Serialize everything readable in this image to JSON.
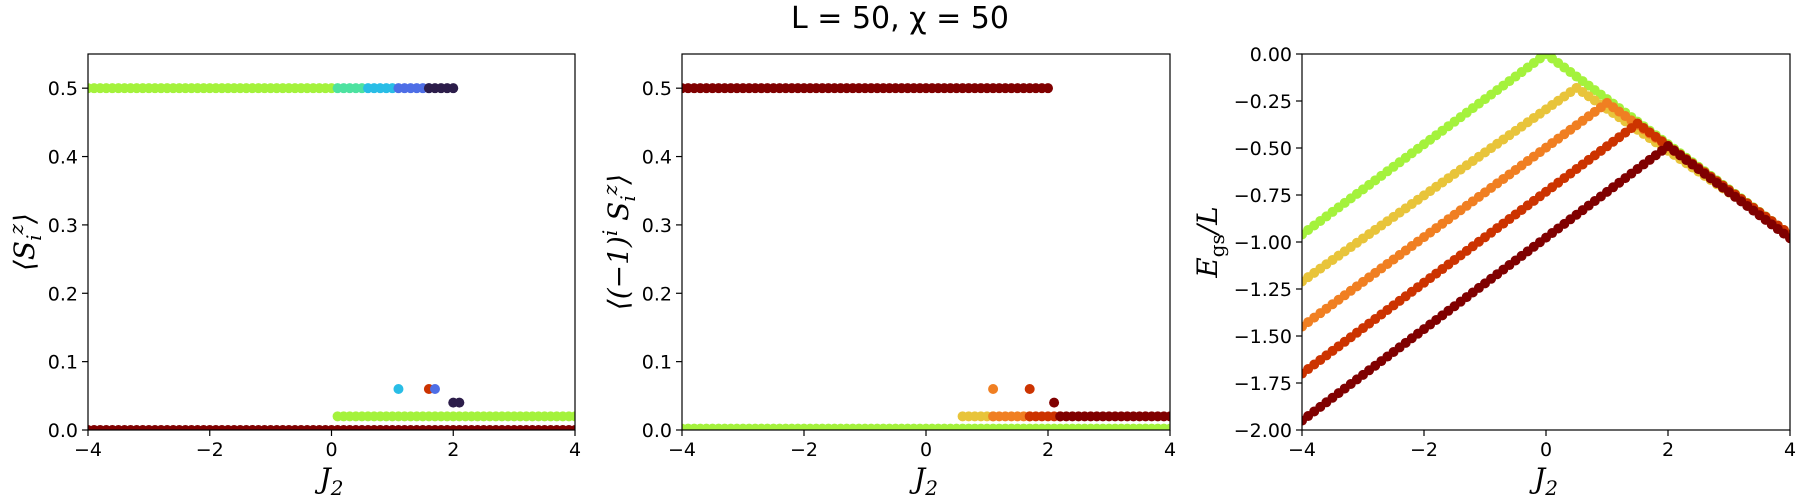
{
  "title": "L = 50, χ = 50",
  "chart_data": [
    {
      "type": "scatter",
      "ylabel": "⟨S_i^z⟩",
      "xlabel": "J_2",
      "xlim": [
        -4,
        4
      ],
      "ylim": [
        0,
        0.55
      ],
      "xticks": [
        "−4",
        "−2",
        "0",
        "2",
        "4"
      ],
      "yticks": [
        "0.0",
        "0.1",
        "0.2",
        "0.3",
        "0.4",
        "0.5"
      ],
      "xtick_values": [
        -4,
        -2,
        0,
        2,
        4
      ],
      "ytick_values": [
        0,
        0.1,
        0.2,
        0.3,
        0.4,
        0.5
      ],
      "series": [
        {
          "color": "#800000",
          "x_range": [
            -4,
            4
          ],
          "step": 0.1,
          "y": 0.0
        },
        {
          "color": "#a4f23c",
          "x_range": [
            -4,
            0
          ],
          "step": 0.1,
          "y": 0.5
        },
        {
          "color": "#4de2a0",
          "x_range": [
            0.1,
            0.5
          ],
          "step": 0.1,
          "y": 0.5
        },
        {
          "color": "#29bde6",
          "x_range": [
            0.6,
            1.0
          ],
          "step": 0.1,
          "y": 0.5
        },
        {
          "color": "#4e6ee6",
          "x_range": [
            1.1,
            1.6
          ],
          "step": 0.1,
          "y": 0.5
        },
        {
          "color": "#2c1d4a",
          "x_range": [
            1.6,
            2.0
          ],
          "step": 0.1,
          "y": 0.5
        },
        {
          "color": "#a4f23c",
          "x_range": [
            0.1,
            4
          ],
          "step": 0.1,
          "y": 0.02
        },
        {
          "color": "#29bde6",
          "x": [
            1.1
          ],
          "y": [
            0.06
          ]
        },
        {
          "color": "#cc3300",
          "x": [
            1.6
          ],
          "y": [
            0.06
          ]
        },
        {
          "color": "#4e6ee6",
          "x": [
            1.7
          ],
          "y": [
            0.06
          ]
        },
        {
          "color": "#2c1d4a",
          "x": [
            2.0,
            2.1
          ],
          "y": [
            0.04,
            0.04
          ]
        }
      ]
    },
    {
      "type": "scatter",
      "ylabel": "⟨(−1)^i S_i^z⟩",
      "xlabel": "J_2",
      "xlim": [
        -4,
        4
      ],
      "ylim": [
        0,
        0.55
      ],
      "xticks": [
        "−4",
        "−2",
        "0",
        "2",
        "4"
      ],
      "yticks": [
        "0.0",
        "0.1",
        "0.2",
        "0.3",
        "0.4",
        "0.5"
      ],
      "xtick_values": [
        -4,
        -2,
        0,
        2,
        4
      ],
      "ytick_values": [
        0,
        0.1,
        0.2,
        0.3,
        0.4,
        0.5
      ],
      "series": [
        {
          "color": "#a4f23c",
          "x_range": [
            -4,
            4
          ],
          "step": 0.1,
          "y": 0.002
        },
        {
          "color": "#800000",
          "x_range": [
            -4,
            2
          ],
          "step": 0.1,
          "y": 0.5
        },
        {
          "color": "#e8c43a",
          "x_range": [
            0.6,
            1.1
          ],
          "step": 0.1,
          "y": 0.02
        },
        {
          "color": "#f07f22",
          "x_range": [
            1.1,
            1.7
          ],
          "step": 0.1,
          "y": 0.02
        },
        {
          "color": "#cc3300",
          "x_range": [
            1.7,
            2.2
          ],
          "step": 0.1,
          "y": 0.02
        },
        {
          "color": "#800000",
          "x_range": [
            2.2,
            4
          ],
          "step": 0.1,
          "y": 0.02
        },
        {
          "color": "#f07f22",
          "x": [
            1.1
          ],
          "y": [
            0.06
          ]
        },
        {
          "color": "#cc3300",
          "x": [
            1.7
          ],
          "y": [
            0.06
          ]
        },
        {
          "color": "#800000",
          "x": [
            2.1
          ],
          "y": [
            0.04
          ]
        }
      ]
    },
    {
      "type": "scatter",
      "ylabel": "E_gs/L",
      "xlabel": "J_2",
      "xlim": [
        -4,
        4
      ],
      "ylim": [
        -2,
        0
      ],
      "xticks": [
        "−4",
        "−2",
        "0",
        "2",
        "4"
      ],
      "yticks": [
        "−2.00",
        "−1.75",
        "−1.50",
        "−1.25",
        "−1.00",
        "−0.75",
        "−0.50",
        "−0.25",
        "0.00"
      ],
      "xtick_values": [
        -4,
        -2,
        0,
        2,
        4
      ],
      "ytick_values": [
        -2,
        -1.75,
        -1.5,
        -1.25,
        -1,
        -0.75,
        -0.5,
        -0.25,
        0
      ],
      "series": [
        {
          "color": "#a4f23c",
          "peak": [
            0.0,
            0.0
          ],
          "y_at_xmin": -0.96,
          "y_at_xmax": -0.96
        },
        {
          "color": "#e8c43a",
          "peak": [
            0.5,
            -0.18
          ],
          "y_at_xmin": -1.21,
          "y_at_xmax": -0.96
        },
        {
          "color": "#f07f22",
          "peak": [
            1.0,
            -0.26
          ],
          "y_at_xmin": -1.45,
          "y_at_xmax": -0.96
        },
        {
          "color": "#cc3300",
          "peak": [
            1.5,
            -0.37
          ],
          "y_at_xmin": -1.7,
          "y_at_xmax": -0.96
        },
        {
          "color": "#800000",
          "peak": [
            2.0,
            -0.49
          ],
          "y_at_xmin": -1.95,
          "y_at_xmax": -0.98
        }
      ]
    }
  ]
}
